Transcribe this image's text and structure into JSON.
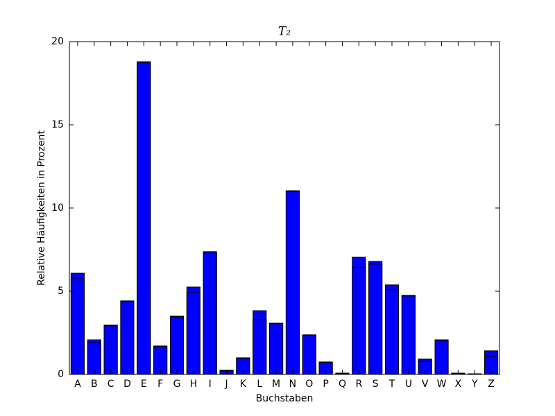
{
  "chart_data": {
    "type": "bar",
    "title": "T₂",
    "x_label": "Buchstaben",
    "y_label": "Relative Häufigkeiten in Prozent",
    "categories": [
      "A",
      "B",
      "C",
      "D",
      "E",
      "F",
      "G",
      "H",
      "I",
      "J",
      "K",
      "L",
      "M",
      "N",
      "O",
      "P",
      "Q",
      "R",
      "S",
      "T",
      "U",
      "V",
      "W",
      "X",
      "Y",
      "Z"
    ],
    "series": [
      {
        "color": "#0000ff",
        "values": [
          6.08,
          2.08,
          2.96,
          4.42,
          18.79,
          1.71,
          3.5,
          5.25,
          7.38,
          0.25,
          1.0,
          3.83,
          3.08,
          11.04,
          2.38,
          0.75,
          0.08,
          7.04,
          6.79,
          5.38,
          4.75,
          0.92,
          2.08,
          0.08,
          0.04,
          1.42
        ]
      },
      {
        "color": "#0000ff",
        "values": [
          5.79,
          1.92,
          2.92,
          4.38,
          18.75,
          1.67,
          3.46,
          4.92,
          7.29,
          0.21,
          0.96,
          3.29,
          3.04,
          11.0,
          2.33,
          0.71,
          0.04,
          6.42,
          6.63,
          5.08,
          4.71,
          0.79,
          2.04,
          0.04,
          0.02,
          1.08
        ]
      }
    ],
    "ylim": [
      0,
      20
    ],
    "yticks": [
      0,
      5,
      10,
      15,
      20
    ],
    "grid": false
  }
}
